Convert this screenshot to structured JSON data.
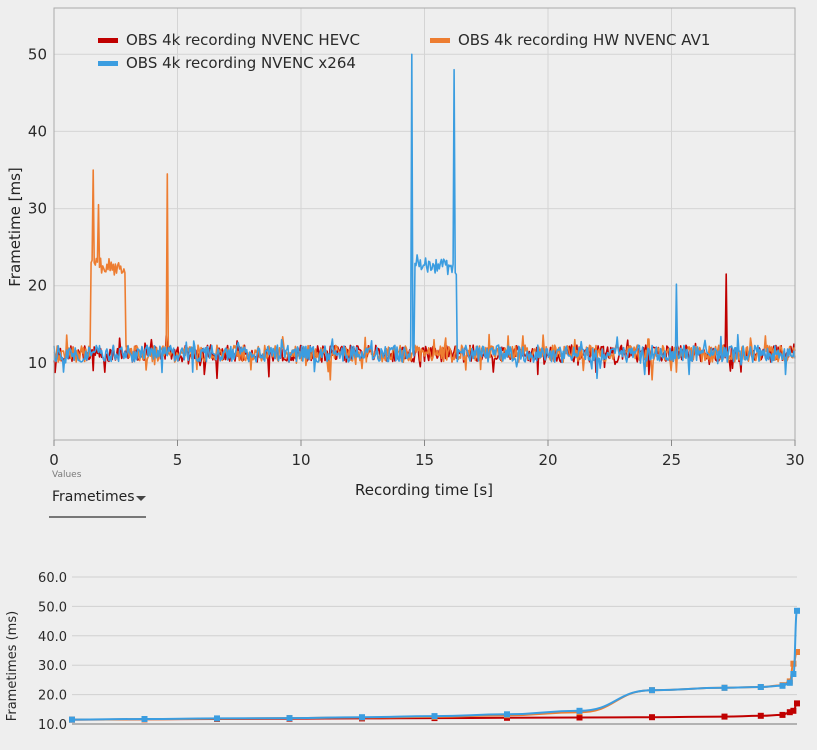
{
  "chart_data": [
    {
      "type": "line",
      "title": "",
      "xlabel": "Recording time [s]",
      "ylabel": "Frametime [ms]",
      "xlim": [
        0,
        30
      ],
      "ylim": [
        0,
        56
      ],
      "x_ticks": [
        "0",
        "5",
        "10",
        "15",
        "20",
        "25",
        "30"
      ],
      "y_ticks": [
        "10",
        "20",
        "30",
        "40",
        "50"
      ],
      "x_tick_values": [
        0,
        5,
        10,
        15,
        20,
        25,
        30
      ],
      "y_tick_values": [
        10,
        20,
        30,
        40,
        50
      ],
      "legend": [
        "OBS 4k recording NVENC HEVC",
        "OBS 4k recording HW NVENC AV1",
        "OBS 4k recording NVENC x264"
      ],
      "series": [
        {
          "name": "OBS 4k recording NVENC HEVC",
          "color": "#c00000",
          "baseline_ms": 11.2,
          "spikes": [
            [
              1.6,
              9.0
            ],
            [
              6.1,
              8.5
            ],
            [
              6.6,
              8.0
            ],
            [
              8.7,
              8.2
            ],
            [
              17.8,
              8.8
            ],
            [
              19.6,
              8.5
            ],
            [
              24.1,
              8.5
            ],
            [
              27.2,
              21.5
            ]
          ]
        },
        {
          "name": "OBS 4k recording HW NVENC AV1",
          "color": "#ed7d31",
          "baseline_ms": 11.2,
          "plateaus": [
            [
              1.5,
              2.9,
              22.5
            ]
          ],
          "spikes": [
            [
              1.6,
              35.0
            ],
            [
              1.8,
              30.5
            ],
            [
              4.6,
              34.5
            ],
            [
              11.2,
              7.8
            ],
            [
              15.4,
              13.0
            ],
            [
              19.0,
              13.5
            ],
            [
              21.1,
              13.0
            ],
            [
              24.2,
              7.8
            ],
            [
              25.0,
              9.0
            ],
            [
              28.8,
              13.5
            ]
          ]
        },
        {
          "name": "OBS 4k recording NVENC x264",
          "color": "#3b9de0",
          "baseline_ms": 11.2,
          "plateaus": [
            [
              14.6,
              16.3,
              22.5
            ]
          ],
          "spikes": [
            [
              0.4,
              8.8
            ],
            [
              5.6,
              8.8
            ],
            [
              9.2,
              13.0
            ],
            [
              14.5,
              50.0
            ],
            [
              14.7,
              24.0
            ],
            [
              16.2,
              48.0
            ],
            [
              22.0,
              8.0
            ],
            [
              23.9,
              8.5
            ],
            [
              25.2,
              20.2
            ],
            [
              25.7,
              8.5
            ],
            [
              29.6,
              8.5
            ]
          ]
        }
      ]
    },
    {
      "type": "line",
      "xlabel": "",
      "ylabel": "Frametimes (ms)",
      "ylim": [
        10,
        60
      ],
      "y_ticks": [
        "10.0",
        "20.0",
        "30.0",
        "40.0",
        "50.0",
        "60.0"
      ],
      "y_tick_values": [
        10,
        20,
        30,
        40,
        50,
        60
      ],
      "x": [
        0,
        10,
        20,
        30,
        40,
        50,
        60,
        70,
        80,
        90,
        95,
        98,
        99,
        99.5,
        100
      ],
      "series": [
        {
          "name": "OBS 4k recording NVENC HEVC",
          "color": "#c00000",
          "values": [
            11.5,
            11.6,
            11.7,
            11.8,
            11.9,
            12.0,
            12.1,
            12.2,
            12.3,
            12.5,
            12.8,
            13.1,
            14.0,
            14.5,
            17.0
          ]
        },
        {
          "name": "OBS 4k recording HW NVENC AV1",
          "color": "#ed7d31",
          "values": [
            11.5,
            11.6,
            11.8,
            12.0,
            12.2,
            12.4,
            13.0,
            14.0,
            21.5,
            22.3,
            22.6,
            23.2,
            24.5,
            30.5,
            34.5
          ]
        },
        {
          "name": "OBS 4k recording NVENC x264",
          "color": "#3b9de0",
          "values": [
            11.5,
            11.7,
            11.9,
            12.0,
            12.3,
            12.7,
            13.3,
            14.5,
            21.5,
            22.3,
            22.6,
            23.0,
            24.0,
            27.0,
            48.5
          ]
        }
      ]
    }
  ],
  "dropdown": {
    "label": "Values",
    "value": "Frametimes"
  }
}
